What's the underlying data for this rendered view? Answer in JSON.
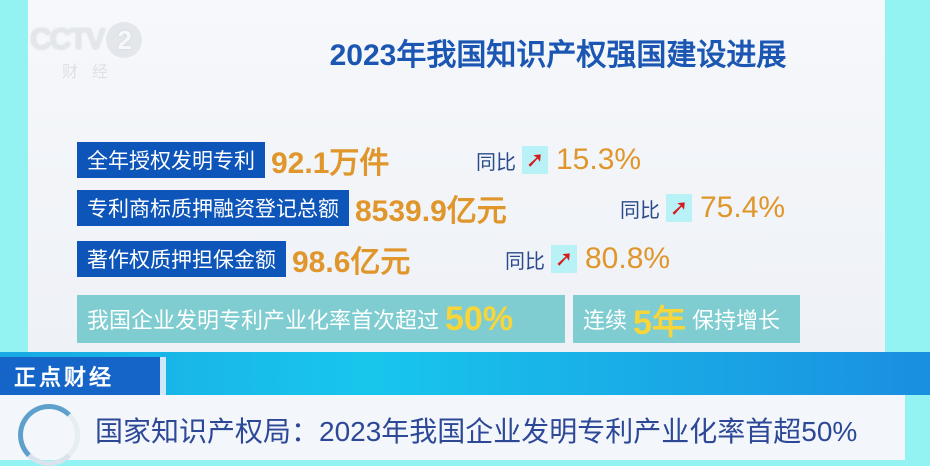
{
  "logo": {
    "channel": "CCTV",
    "number": "2",
    "sub": "财经"
  },
  "title": "2023年我国知识产权强国建设进展",
  "rows": [
    {
      "label": "全年授权发明专利",
      "value": "92.1万件",
      "yoy_label": "同比",
      "trend": "up-arrow",
      "yoy": "15.3%"
    },
    {
      "label": "专利商标质押融资登记总额",
      "value": "8539.9亿元",
      "yoy_label": "同比",
      "trend": "up-arrow",
      "yoy": "75.4%"
    },
    {
      "label": "著作权质押担保金额",
      "value": "98.6亿元",
      "yoy_label": "同比",
      "trend": "up-arrow",
      "yoy": "80.8%"
    }
  ],
  "highlight1": {
    "text": "我国企业发明专利产业化率首次超过",
    "emph": "50%"
  },
  "highlight2": {
    "pre": "连续",
    "emph": "5年",
    "post": "保持增长"
  },
  "program": "正点财经",
  "headline": "国家知识产权局：2023年我国企业发明专利产业化率首超50%",
  "colors": {
    "accent_blue": "#0d55b8",
    "value_orange": "#e0962a",
    "arrow_red": "#d51b1b",
    "teal": "#7fcdd0"
  }
}
